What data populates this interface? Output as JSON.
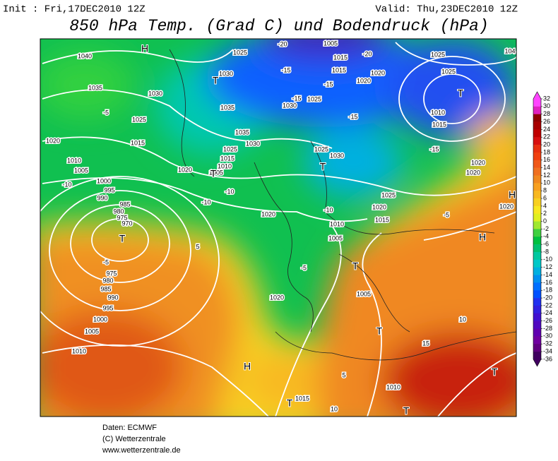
{
  "header": {
    "init": "Init : Fri,17DEC2010 12Z",
    "valid": "Valid: Thu,23DEC2010 12Z",
    "title": "850 hPa Temp. (Grad C) und Bodendruck (hPa)"
  },
  "colorbar": {
    "ticks": [
      32,
      30,
      28,
      26,
      24,
      22,
      20,
      18,
      16,
      14,
      12,
      10,
      8,
      6,
      4,
      2,
      0,
      -2,
      -4,
      -6,
      -8,
      -10,
      -12,
      -14,
      -16,
      -18,
      -20,
      -22,
      -24,
      -26,
      -28,
      -30,
      -32,
      -34,
      -36
    ],
    "colors": [
      "#ff44ff",
      "#e020c0",
      "#900000",
      "#a80000",
      "#c00000",
      "#d81010",
      "#e83010",
      "#f04010",
      "#f05818",
      "#f07020",
      "#f08820",
      "#f8a020",
      "#f8b820",
      "#f8d020",
      "#f8e820",
      "#e0f020",
      "#a0e830",
      "#40d040",
      "#00c040",
      "#00c070",
      "#00c8a0",
      "#00c8c8",
      "#00b0e0",
      "#0090f0",
      "#0070ff",
      "#0050ff",
      "#2030f0",
      "#3020e0",
      "#4010d0",
      "#5008c0",
      "#6000b0",
      "#7000a0",
      "#600080",
      "#400060"
    ]
  },
  "map": {
    "labels": [
      "1040",
      "H",
      "1035",
      "1030",
      "-5",
      "1025",
      "1020",
      "1015",
      "1010",
      "1005",
      "1000",
      "995",
      "990",
      "985",
      "980",
      "975",
      "970",
      "T",
      "-5",
      "975",
      "980",
      "985",
      "990",
      "995",
      "1000",
      "1005",
      "1010",
      "-10",
      "1025",
      "1030",
      "T",
      "1035",
      "1035",
      "1030",
      "1025",
      "1015",
      "1010",
      "1005",
      "T",
      "1020",
      "-10",
      "-10",
      "1020",
      "1020",
      "H",
      "1015",
      "T",
      "-20",
      "1005",
      "1015",
      "-20",
      "1015",
      "1020",
      "1020",
      "-15",
      "-15",
      "1025",
      "1030",
      "-15",
      "-15",
      "1025",
      "1030",
      "T",
      "1025",
      "1020",
      "1015",
      "-10",
      "1010",
      "1005",
      "T",
      "-5",
      "1005",
      "T",
      "1010",
      "1025",
      "1025",
      "T",
      "1010",
      "1015",
      "-15",
      "1020",
      "1020",
      "H",
      "1020",
      "H",
      "10",
      "15",
      "T",
      "T",
      "10",
      "5",
      "-5",
      "5",
      "104"
    ]
  },
  "footer": {
    "lines": [
      "Daten: ECMWF",
      "(C) Wetterzentrale",
      "www.wetterzentrale.de"
    ]
  }
}
